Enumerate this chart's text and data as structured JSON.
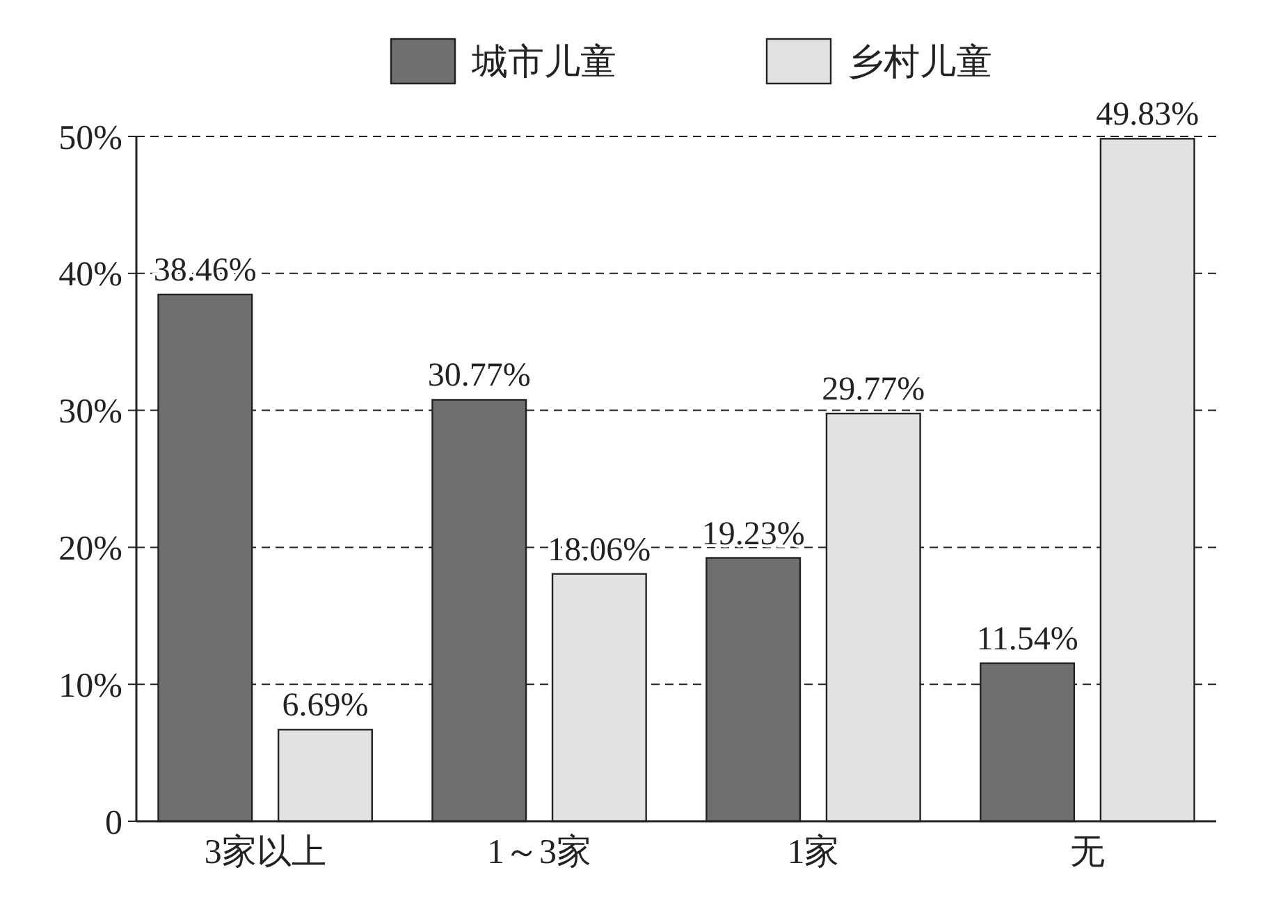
{
  "chart_data": {
    "type": "bar",
    "categories": [
      "3家以上",
      "1～3家",
      "1家",
      "无"
    ],
    "series": [
      {
        "name": "城市儿童",
        "color": "#6f6f6f",
        "values": [
          38.46,
          30.77,
          19.23,
          11.54
        ],
        "value_labels": [
          "38.46%",
          "30.77%",
          "19.23%",
          "11.54%"
        ]
      },
      {
        "name": "乡村儿童",
        "color": "#e2e2e2",
        "values": [
          6.69,
          18.06,
          29.77,
          49.83
        ],
        "value_labels": [
          "6.69%",
          "18.06%",
          "29.77%",
          "49.83%"
        ]
      }
    ],
    "ylim": [
      0,
      50
    ],
    "yticks": [
      0,
      {
        "value": 10,
        "label": "10%"
      },
      {
        "value": 20,
        "label": "20%"
      },
      {
        "value": 30,
        "label": "30%"
      },
      {
        "value": 40,
        "label": "40%"
      },
      {
        "value": 50,
        "label": "50%"
      }
    ],
    "grid": "y",
    "legend": "top"
  }
}
